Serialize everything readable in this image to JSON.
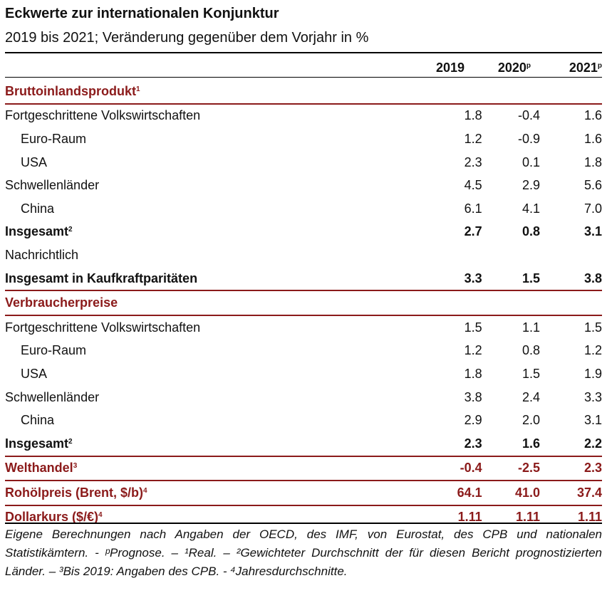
{
  "title": "Eckwerte zur internationalen Konjunktur",
  "subtitle": "2019 bis 2021; Veränderung gegenüber dem Vorjahr in %",
  "columns": [
    {
      "label": "2019",
      "sup": ""
    },
    {
      "label": "2020",
      "sup": "p"
    },
    {
      "label": "2021",
      "sup": "p"
    }
  ],
  "sections": [
    {
      "heading": "Bruttoinlandsprodukt",
      "heading_sup": "1",
      "rows": [
        {
          "label": "Fortgeschrittene Volkswirtschaften",
          "sup": "",
          "values": [
            "1.8",
            "-0.4",
            "1.6"
          ]
        },
        {
          "label": "Euro-Raum",
          "sup": "",
          "values": [
            "1.2",
            "-0.9",
            "1.6"
          ]
        },
        {
          "label": "USA",
          "sup": "",
          "values": [
            "2.3",
            "0.1",
            "1.8"
          ]
        },
        {
          "label": "Schwellenländer",
          "sup": "",
          "values": [
            "4.5",
            "2.9",
            "5.6"
          ]
        },
        {
          "label": "China",
          "sup": "",
          "values": [
            "6.1",
            "4.1",
            "7.0"
          ]
        },
        {
          "label": "Insgesamt",
          "sup": "2",
          "values": [
            "2.7",
            "0.8",
            "3.1"
          ]
        },
        {
          "label": "Nachrichtlich",
          "sup": "",
          "values": [
            "",
            "",
            ""
          ]
        },
        {
          "label": "Insgesamt in Kaufkraftparitäten",
          "sup": "",
          "values": [
            "3.3",
            "1.5",
            "3.8"
          ]
        }
      ]
    },
    {
      "heading": "Verbraucherpreise",
      "heading_sup": "",
      "rows": [
        {
          "label": "Fortgeschrittene Volkswirtschaften",
          "sup": "",
          "values": [
            "1.5",
            "1.1",
            "1.5"
          ]
        },
        {
          "label": "Euro-Raum",
          "sup": "",
          "values": [
            "1.2",
            "0.8",
            "1.2"
          ]
        },
        {
          "label": "USA",
          "sup": "",
          "values": [
            "1.8",
            "1.5",
            "1.9"
          ]
        },
        {
          "label": "Schwellenländer",
          "sup": "",
          "values": [
            "3.8",
            "2.4",
            "3.3"
          ]
        },
        {
          "label": "China",
          "sup": "",
          "values": [
            "2.9",
            "2.0",
            "3.1"
          ]
        },
        {
          "label": "Insgesamt",
          "sup": "2",
          "values": [
            "2.3",
            "1.6",
            "2.2"
          ]
        }
      ]
    }
  ],
  "extra_rows": [
    {
      "label": "Welthandel",
      "sup": "3",
      "values": [
        "-0.4",
        "-2.5",
        "2.3"
      ]
    },
    {
      "label": "Rohölpreis (Brent, $/b)",
      "sup": "4",
      "values": [
        "64.1",
        "41.0",
        "37.4"
      ]
    },
    {
      "label": "Dollarkurs ($/€)",
      "sup": "4",
      "values": [
        "1.11",
        "1.11",
        "1.11"
      ]
    }
  ],
  "footnote": "Eigene Berechnungen nach Angaben der OECD, des IMF, von Eurostat, des CPB und nationalen Statistikämtern. - ᵖPrognose. – ¹Real. – ²Gewichteter Durchschnitt der für diesen Bericht prognostizierten Länder. – ³Bis 2019: Angaben des CPB. - ⁴Jahresdurchschnitte.",
  "colors": {
    "accent": "#8b1a1a",
    "text": "#111111"
  }
}
